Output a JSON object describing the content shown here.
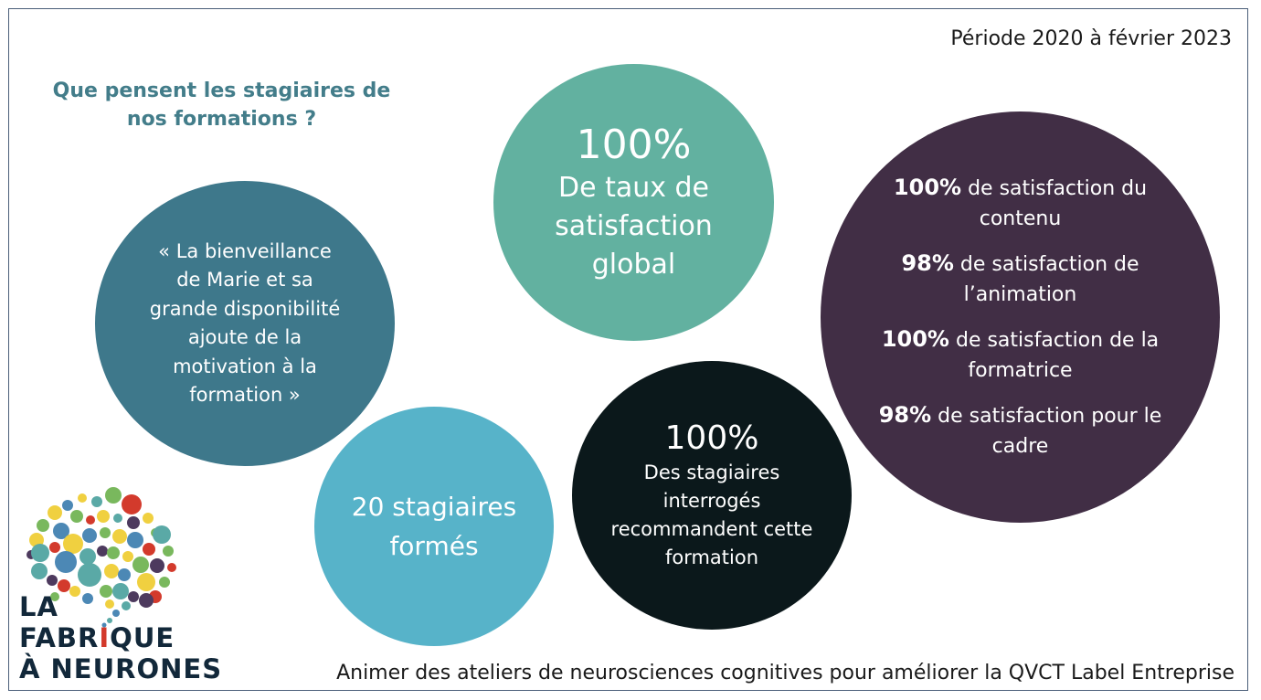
{
  "period": "Période 2020 à février 2023",
  "question": "Que pensent les stagiaires de nos formations ?",
  "quote": "« La bienveillance de Marie et sa grande disponibilité ajoute de la motivation à la formation »",
  "global": {
    "value": "100%",
    "label": "De taux de satisfaction global"
  },
  "trained": {
    "label": "20 stagiaires formés"
  },
  "recommend": {
    "value": "100%",
    "label": "Des stagiaires interrogés recommandent cette formation"
  },
  "details": [
    {
      "pct": "100%",
      "text": " de satisfaction du contenu"
    },
    {
      "pct": "98%",
      "text": " de satisfaction de l’animation"
    },
    {
      "pct": "100%",
      "text": " de satisfaction de la formatrice"
    },
    {
      "pct": "98%",
      "text": " de satisfaction pour le cadre"
    }
  ],
  "footer": "Animer des ateliers de neurosciences cognitives pour améliorer la QVCT Label Entreprise",
  "logo": {
    "line1": "LA",
    "line2_start": "FABR",
    "line2_accent": "I",
    "line2_end": "QUE",
    "line3": "À NEURONES",
    "colors": {
      "teal": "#5aa9a6",
      "blue": "#4c88b5",
      "yellow": "#f0d040",
      "red": "#d33a2c",
      "green": "#79b85d",
      "purple": "#4d3a5e",
      "navy": "#12283a"
    }
  }
}
